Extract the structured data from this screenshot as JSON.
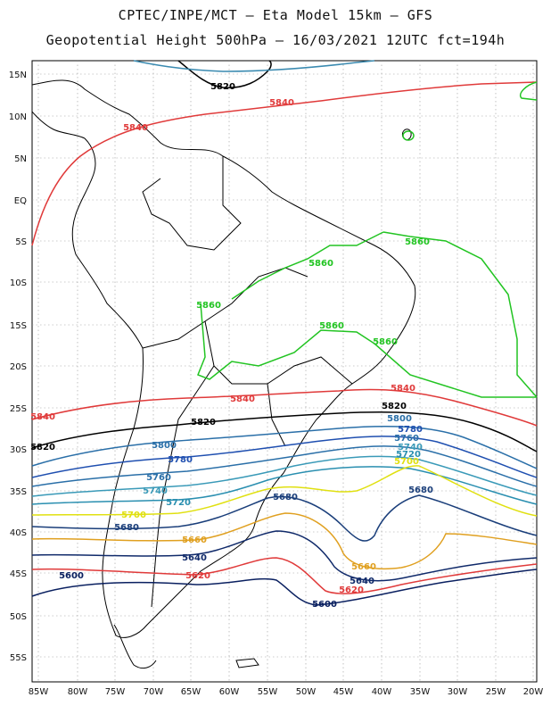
{
  "header": {
    "line1": "CPTEC/INPE/MCT –  Eta Model 15km – GFS",
    "line2": "Geopotential Height 500hPa – 16/03/2021 12UTC fct=194h"
  },
  "axes": {
    "lat_labels": [
      "15N",
      "10N",
      "5N",
      "EQ",
      "5S",
      "10S",
      "15S",
      "20S",
      "25S",
      "30S",
      "35S",
      "40S",
      "45S",
      "50S",
      "55S"
    ],
    "lon_labels": [
      "85W",
      "80W",
      "75W",
      "70W",
      "65W",
      "60W",
      "55W",
      "50W",
      "45W",
      "40W",
      "35W",
      "30W",
      "25W",
      "20W"
    ]
  },
  "contour_labels": [
    {
      "text": "5820",
      "color": "#000000"
    },
    {
      "text": "5840",
      "color": "#e03a3a"
    },
    {
      "text": "5840",
      "color": "#e03a3a"
    },
    {
      "text": "5860",
      "color": "#22c422"
    },
    {
      "text": "5860",
      "color": "#22c422"
    },
    {
      "text": "5860",
      "color": "#22c422"
    },
    {
      "text": "5860",
      "color": "#22c422"
    },
    {
      "text": "5860",
      "color": "#22c422"
    },
    {
      "text": "5840",
      "color": "#e03a3a"
    },
    {
      "text": "5840",
      "color": "#e03a3a"
    },
    {
      "text": "5840",
      "color": "#e03a3a"
    },
    {
      "text": "5820",
      "color": "#000000"
    },
    {
      "text": "5820",
      "color": "#000000"
    },
    {
      "text": "5820",
      "color": "#000000"
    },
    {
      "text": "5800",
      "color": "#2a6fa8"
    },
    {
      "text": "5800",
      "color": "#2a6fa8"
    },
    {
      "text": "5780",
      "color": "#1f4fb0"
    },
    {
      "text": "5780",
      "color": "#1f4fb0"
    },
    {
      "text": "5760",
      "color": "#2a6fa8"
    },
    {
      "text": "5760",
      "color": "#2a6fa8"
    },
    {
      "text": "5740",
      "color": "#3a9ab8"
    },
    {
      "text": "5740",
      "color": "#3a9ab8"
    },
    {
      "text": "5720",
      "color": "#2a8fb0"
    },
    {
      "text": "5720",
      "color": "#2a8fb0"
    },
    {
      "text": "5700",
      "color": "#e0e010"
    },
    {
      "text": "5700",
      "color": "#e0e010"
    },
    {
      "text": "5680",
      "color": "#1a3e7a"
    },
    {
      "text": "5680",
      "color": "#1a3e7a"
    },
    {
      "text": "5680",
      "color": "#1a3e7a"
    },
    {
      "text": "5660",
      "color": "#e0a020"
    },
    {
      "text": "5660",
      "color": "#e0a020"
    },
    {
      "text": "5640",
      "color": "#102a6a"
    },
    {
      "text": "5640",
      "color": "#102a6a"
    },
    {
      "text": "5620",
      "color": "#e03a3a"
    },
    {
      "text": "5620",
      "color": "#e03a3a"
    },
    {
      "text": "5600",
      "color": "#0a2060"
    },
    {
      "text": "5600",
      "color": "#0a2060"
    }
  ]
}
